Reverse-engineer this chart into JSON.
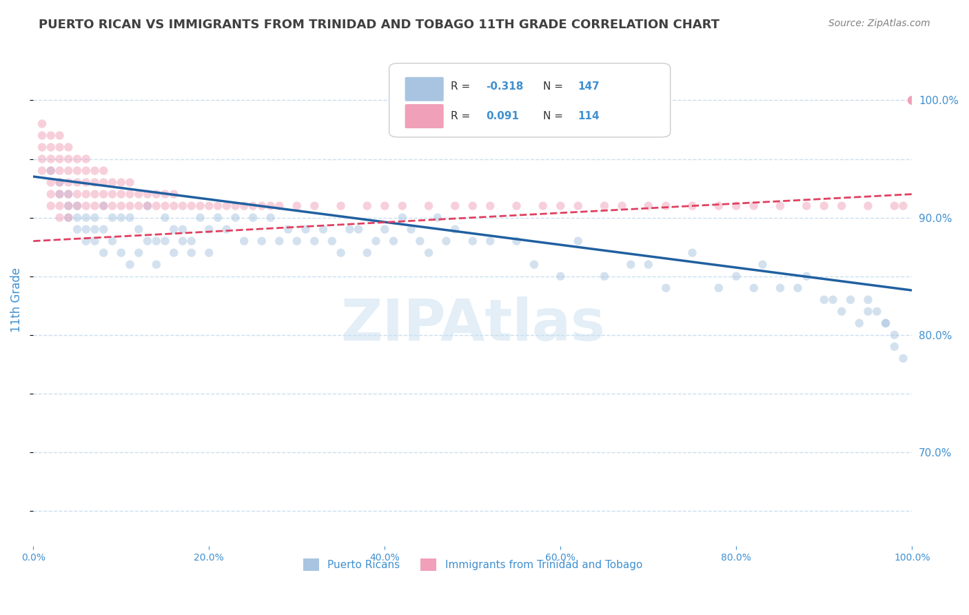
{
  "title": "PUERTO RICAN VS IMMIGRANTS FROM TRINIDAD AND TOBAGO 11TH GRADE CORRELATION CHART",
  "source_text": "Source: ZipAtlas.com",
  "xlabel": "",
  "ylabel": "11th Grade",
  "blue_R": -0.318,
  "blue_N": 147,
  "pink_R": 0.091,
  "pink_N": 114,
  "blue_color": "#a8c4e0",
  "blue_line_color": "#2060a0",
  "pink_color": "#f0a0b8",
  "pink_line_color": "#e04060",
  "axis_label_color": "#4090d0",
  "title_color": "#404040",
  "watermark_color": "#c8dff0",
  "xlim": [
    0.0,
    1.0
  ],
  "ylim": [
    0.62,
    1.04
  ],
  "right_yticks": [
    0.7,
    0.8,
    0.9,
    1.0
  ],
  "right_yticklabels": [
    "70.0%",
    "80.0%",
    "90.0%",
    "100.0%"
  ],
  "blue_scatter_x": [
    0.02,
    0.03,
    0.03,
    0.04,
    0.04,
    0.04,
    0.05,
    0.05,
    0.05,
    0.06,
    0.06,
    0.06,
    0.07,
    0.07,
    0.07,
    0.08,
    0.08,
    0.08,
    0.09,
    0.09,
    0.1,
    0.1,
    0.11,
    0.11,
    0.12,
    0.12,
    0.13,
    0.13,
    0.14,
    0.14,
    0.15,
    0.15,
    0.16,
    0.16,
    0.17,
    0.17,
    0.18,
    0.18,
    0.19,
    0.2,
    0.2,
    0.21,
    0.22,
    0.23,
    0.24,
    0.25,
    0.26,
    0.27,
    0.28,
    0.29,
    0.3,
    0.31,
    0.32,
    0.33,
    0.34,
    0.35,
    0.36,
    0.37,
    0.38,
    0.39,
    0.4,
    0.41,
    0.42,
    0.43,
    0.44,
    0.45,
    0.46,
    0.47,
    0.48,
    0.5,
    0.52,
    0.55,
    0.57,
    0.6,
    0.62,
    0.65,
    0.68,
    0.7,
    0.72,
    0.75,
    0.78,
    0.8,
    0.82,
    0.83,
    0.85,
    0.87,
    0.88,
    0.9,
    0.91,
    0.92,
    0.93,
    0.94,
    0.95,
    0.95,
    0.96,
    0.97,
    0.97,
    0.98,
    0.98,
    0.99
  ],
  "blue_scatter_y": [
    0.94,
    0.93,
    0.92,
    0.92,
    0.91,
    0.9,
    0.91,
    0.9,
    0.89,
    0.9,
    0.89,
    0.88,
    0.9,
    0.89,
    0.88,
    0.91,
    0.89,
    0.87,
    0.9,
    0.88,
    0.9,
    0.87,
    0.9,
    0.86,
    0.89,
    0.87,
    0.91,
    0.88,
    0.88,
    0.86,
    0.9,
    0.88,
    0.89,
    0.87,
    0.89,
    0.88,
    0.88,
    0.87,
    0.9,
    0.89,
    0.87,
    0.9,
    0.89,
    0.9,
    0.88,
    0.9,
    0.88,
    0.9,
    0.88,
    0.89,
    0.88,
    0.89,
    0.88,
    0.89,
    0.88,
    0.87,
    0.89,
    0.89,
    0.87,
    0.88,
    0.89,
    0.88,
    0.9,
    0.89,
    0.88,
    0.87,
    0.9,
    0.88,
    0.89,
    0.88,
    0.88,
    0.88,
    0.86,
    0.85,
    0.88,
    0.85,
    0.86,
    0.86,
    0.84,
    0.87,
    0.84,
    0.85,
    0.84,
    0.86,
    0.84,
    0.84,
    0.85,
    0.83,
    0.83,
    0.82,
    0.83,
    0.81,
    0.83,
    0.82,
    0.82,
    0.81,
    0.81,
    0.8,
    0.79,
    0.78
  ],
  "pink_scatter_x": [
    0.01,
    0.01,
    0.01,
    0.01,
    0.01,
    0.02,
    0.02,
    0.02,
    0.02,
    0.02,
    0.02,
    0.02,
    0.03,
    0.03,
    0.03,
    0.03,
    0.03,
    0.03,
    0.03,
    0.03,
    0.04,
    0.04,
    0.04,
    0.04,
    0.04,
    0.04,
    0.04,
    0.05,
    0.05,
    0.05,
    0.05,
    0.05,
    0.06,
    0.06,
    0.06,
    0.06,
    0.06,
    0.07,
    0.07,
    0.07,
    0.07,
    0.08,
    0.08,
    0.08,
    0.08,
    0.09,
    0.09,
    0.09,
    0.1,
    0.1,
    0.1,
    0.11,
    0.11,
    0.11,
    0.12,
    0.12,
    0.13,
    0.13,
    0.14,
    0.14,
    0.15,
    0.15,
    0.16,
    0.16,
    0.17,
    0.18,
    0.19,
    0.2,
    0.21,
    0.22,
    0.23,
    0.24,
    0.25,
    0.26,
    0.27,
    0.28,
    0.3,
    0.32,
    0.35,
    0.38,
    0.4,
    0.42,
    0.45,
    0.48,
    0.5,
    0.52,
    0.55,
    0.58,
    0.6,
    0.62,
    0.65,
    0.67,
    0.7,
    0.72,
    0.75,
    0.78,
    0.8,
    0.82,
    0.85,
    0.88,
    0.9,
    0.92,
    0.95,
    0.98,
    0.99,
    1.0,
    1.0,
    1.0,
    1.0,
    1.0,
    1.0,
    1.0,
    1.0,
    1.0
  ],
  "pink_scatter_y": [
    0.98,
    0.97,
    0.96,
    0.95,
    0.94,
    0.97,
    0.96,
    0.95,
    0.94,
    0.93,
    0.92,
    0.91,
    0.97,
    0.96,
    0.95,
    0.94,
    0.93,
    0.92,
    0.91,
    0.9,
    0.96,
    0.95,
    0.94,
    0.93,
    0.92,
    0.91,
    0.9,
    0.95,
    0.94,
    0.93,
    0.92,
    0.91,
    0.95,
    0.94,
    0.93,
    0.92,
    0.91,
    0.94,
    0.93,
    0.92,
    0.91,
    0.94,
    0.93,
    0.92,
    0.91,
    0.93,
    0.92,
    0.91,
    0.93,
    0.92,
    0.91,
    0.93,
    0.92,
    0.91,
    0.92,
    0.91,
    0.92,
    0.91,
    0.92,
    0.91,
    0.92,
    0.91,
    0.92,
    0.91,
    0.91,
    0.91,
    0.91,
    0.91,
    0.91,
    0.91,
    0.91,
    0.91,
    0.91,
    0.91,
    0.91,
    0.91,
    0.91,
    0.91,
    0.91,
    0.91,
    0.91,
    0.91,
    0.91,
    0.91,
    0.91,
    0.91,
    0.91,
    0.91,
    0.91,
    0.91,
    0.91,
    0.91,
    0.91,
    0.91,
    0.91,
    0.91,
    0.91,
    0.91,
    0.91,
    0.91,
    0.91,
    0.91,
    0.91,
    0.91,
    0.91,
    1.0,
    1.0,
    1.0,
    1.0,
    1.0,
    1.0,
    1.0,
    1.0,
    1.0
  ],
  "blue_trend_x": [
    0.0,
    1.0
  ],
  "blue_trend_y_start": 0.935,
  "blue_trend_y_end": 0.838,
  "pink_trend_x": [
    0.0,
    1.0
  ],
  "pink_trend_y_start": 0.88,
  "pink_trend_y_end": 0.92,
  "marker_size": 80,
  "marker_alpha": 0.5,
  "grid_color": "#c8dff0",
  "grid_linestyle": "--",
  "background_color": "#ffffff",
  "legend_box_blue_color": "#a8c4e0",
  "legend_box_pink_color": "#f0a0b8",
  "legend_text_color": "#4090d0",
  "legend_r_text_color": "#404040"
}
